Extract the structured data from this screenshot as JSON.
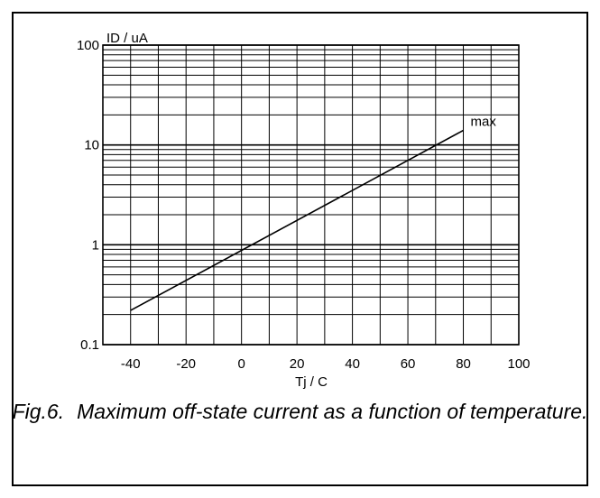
{
  "chart_data": {
    "type": "line",
    "ylabel": "ID / uA",
    "xlabel": "Tj / C",
    "yscale": "log",
    "ylim": [
      0.1,
      100
    ],
    "xlim": [
      -50,
      100
    ],
    "x_ticks": [
      -40,
      -20,
      0,
      20,
      40,
      60,
      80,
      100
    ],
    "x_tick_labels": [
      "-40",
      "-20",
      "0",
      "20",
      "40",
      "60",
      "80",
      "100"
    ],
    "y_ticks": [
      0.1,
      1,
      10,
      100
    ],
    "y_tick_labels": [
      "0.1",
      "1",
      "10",
      "100"
    ],
    "x_grid_step": 10,
    "y_grid": "log-minor",
    "series": [
      {
        "name": "max",
        "x": [
          -40,
          80
        ],
        "y": [
          0.22,
          14
        ]
      }
    ]
  },
  "caption": {
    "number": "Fig.6.",
    "text": "Maximum off-state current as a function of temperature."
  },
  "colors": {
    "line": "#000000",
    "grid": "#000000",
    "background": "#ffffff"
  }
}
